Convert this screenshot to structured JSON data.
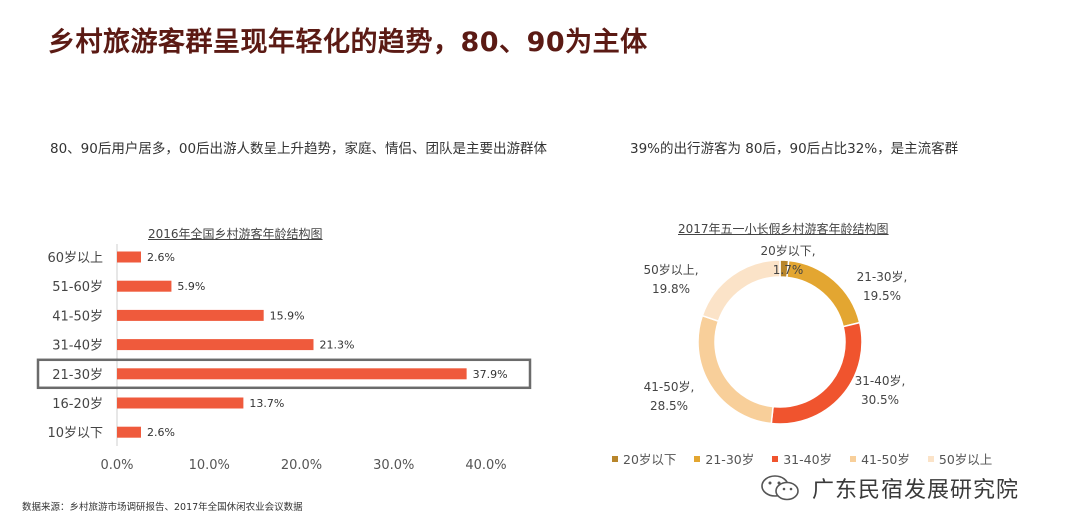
{
  "title": "乡村旅游客群呈现年轻化的趋势，80、90为主体",
  "subtitle_left": "80、90后用户居多，00后出游人数呈上升趋势，家庭、情侣、团队是主要出游群体",
  "subtitle_right": "39%的出行游客为 80后，90后占比32%，是主流客群",
  "source": "数据来源：乡村旅游市场调研报告、2017年全国休闲农业会议数据",
  "watermark": "广东民宿发展研究院",
  "chart_data": [
    {
      "type": "bar",
      "orientation": "horizontal",
      "title": "2016年全国乡村游客年龄结构图",
      "categories": [
        "60岁以上",
        "51-60岁",
        "41-50岁",
        "31-40岁",
        "21-30岁",
        "16-20岁",
        "10岁以下"
      ],
      "values": [
        2.6,
        5.9,
        15.9,
        21.3,
        37.9,
        13.7,
        2.6
      ],
      "value_labels": [
        "2.6%",
        "5.9%",
        "15.9%",
        "21.3%",
        "37.9%",
        "13.7%",
        "2.6%"
      ],
      "xticks": [
        "0.0%",
        "10.0%",
        "20.0%",
        "30.0%",
        "40.0%"
      ],
      "xlim": [
        0,
        40
      ],
      "highlighted_category": "21-30岁",
      "color": "#ef5a3c",
      "grid": false
    },
    {
      "type": "pie",
      "style": "donut",
      "title": "2017年五一小长假乡村游客年龄结构图",
      "categories": [
        "20岁以下",
        "21-30岁",
        "31-40岁",
        "41-50岁",
        "50岁以上"
      ],
      "values": [
        1.7,
        19.5,
        30.5,
        28.5,
        19.8
      ],
      "value_labels": [
        "1.7%",
        "19.5%",
        "30.5%",
        "28.5%",
        "19.8%"
      ],
      "colors": [
        "#b8862b",
        "#e3a631",
        "#f0542e",
        "#f8cf9a",
        "#fbe3c8"
      ],
      "legend": "bottom"
    }
  ]
}
